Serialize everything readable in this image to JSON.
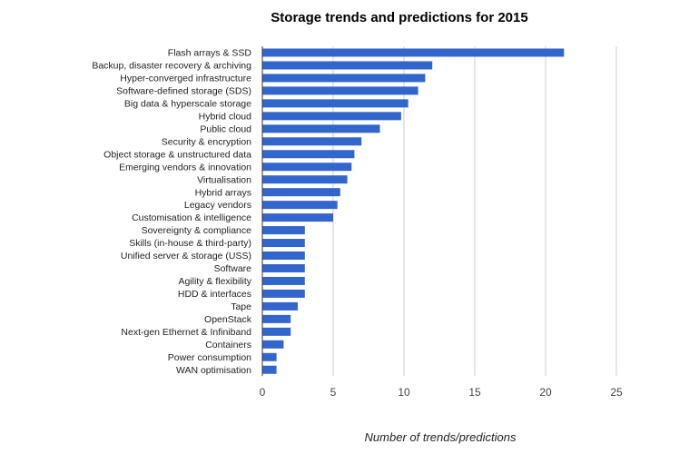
{
  "chart_data": {
    "type": "bar",
    "orientation": "horizontal",
    "title": "Storage trends and predictions for 2015",
    "xlabel": "Number of trends/predictions",
    "ylabel": "",
    "xlim": [
      0,
      25
    ],
    "ticks": [
      0,
      5,
      10,
      15,
      20,
      25
    ],
    "grid": true,
    "legend": "none",
    "bar_color": "#3366cc",
    "categories": [
      "Flash arrays & SSD",
      "Backup, disaster recovery & archiving",
      "Hyper-converged infrastructure",
      "Software-defined storage (SDS)",
      "Big data & hyperscale storage",
      "Hybrid cloud",
      "Public cloud",
      "Security & encryption",
      "Object storage & unstructured data",
      "Emerging vendors & innovation",
      "Virtualisation",
      "Hybrid arrays",
      "Legacy vendors",
      "Customisation & intelligence",
      "Sovereignty & compliance",
      "Skills (in-house & third-party)",
      "Unified server & storage (USS)",
      "Software",
      "Agility & flexibility",
      "HDD & interfaces",
      "Tape",
      "OpenStack",
      "Next-gen Ethernet & Infiniband",
      "Containers",
      "Power consumption",
      "WAN optimisation"
    ],
    "values": [
      21.3,
      12,
      11.5,
      11,
      10.3,
      9.8,
      8.3,
      7,
      6.5,
      6.3,
      6,
      5.5,
      5.3,
      5,
      3,
      3,
      3,
      3,
      3,
      3,
      2.5,
      2,
      2,
      1.5,
      1,
      1
    ]
  }
}
